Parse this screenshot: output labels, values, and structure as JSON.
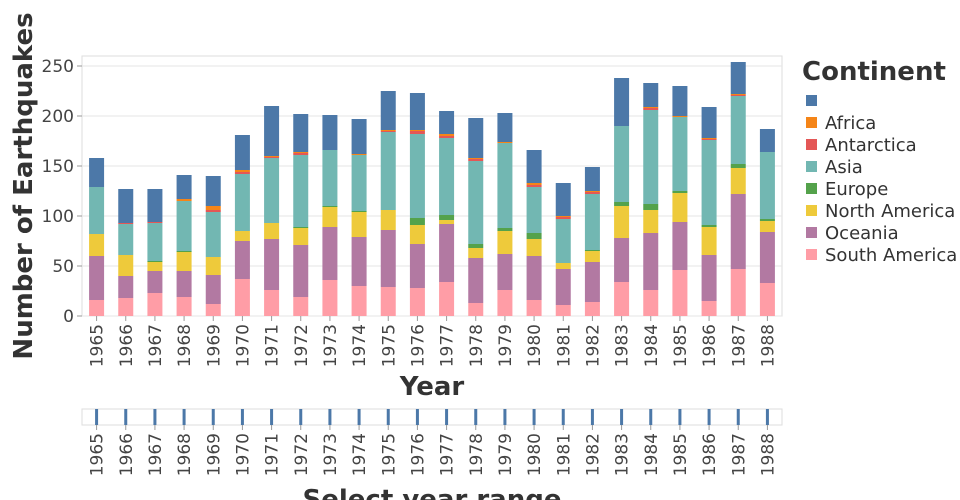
{
  "chart_data": {
    "type": "bar",
    "stacked": true,
    "title": "",
    "xlabel": "Year",
    "ylabel": "Number of Earthquakes",
    "ylim": [
      0,
      260
    ],
    "yticks": [
      0,
      50,
      100,
      150,
      200,
      250
    ],
    "grid": true,
    "legend_title": "Continent",
    "legend_position": "right",
    "categories": [
      "1965",
      "1966",
      "1967",
      "1968",
      "1969",
      "1970",
      "1971",
      "1972",
      "1973",
      "1974",
      "1975",
      "1976",
      "1977",
      "1978",
      "1979",
      "1980",
      "1981",
      "1982",
      "1983",
      "1984",
      "1985",
      "1986",
      "1987",
      "1988"
    ],
    "series": [
      {
        "name": "South America",
        "color": "#FF9DA6",
        "values": [
          16,
          18,
          23,
          19,
          12,
          37,
          26,
          19,
          36,
          30,
          29,
          28,
          34,
          13,
          26,
          16,
          11,
          14,
          34,
          26,
          46,
          15,
          47,
          33
        ]
      },
      {
        "name": "Oceania",
        "color": "#B279A2",
        "values": [
          44,
          22,
          22,
          26,
          29,
          38,
          51,
          52,
          53,
          49,
          57,
          44,
          58,
          45,
          36,
          44,
          36,
          40,
          44,
          57,
          48,
          46,
          75,
          51
        ]
      },
      {
        "name": "North America",
        "color": "#EECA3B",
        "values": [
          22,
          21,
          9,
          19,
          18,
          10,
          16,
          17,
          20,
          25,
          20,
          19,
          4,
          10,
          23,
          17,
          6,
          11,
          32,
          23,
          29,
          28,
          26,
          11
        ]
      },
      {
        "name": "Europe",
        "color": "#54A24B",
        "values": [
          0,
          0,
          1,
          1,
          0,
          0,
          0,
          1,
          1,
          1,
          0,
          7,
          5,
          4,
          3,
          6,
          0,
          1,
          4,
          6,
          2,
          2,
          4,
          2
        ]
      },
      {
        "name": "Asia",
        "color": "#72B7B2",
        "values": [
          47,
          31,
          38,
          50,
          45,
          57,
          65,
          72,
          56,
          56,
          78,
          84,
          77,
          83,
          85,
          46,
          44,
          56,
          76,
          94,
          74,
          85,
          68,
          67
        ]
      },
      {
        "name": "Antarctica",
        "color": "#E45756",
        "values": [
          0,
          1,
          1,
          0,
          2,
          2,
          1,
          2,
          0,
          0,
          1,
          3,
          2,
          2,
          0,
          2,
          2,
          2,
          0,
          2,
          0,
          1,
          1,
          0
        ]
      },
      {
        "name": "Africa",
        "color": "#F58518",
        "values": [
          0,
          0,
          0,
          2,
          4,
          2,
          1,
          1,
          0,
          1,
          1,
          1,
          2,
          1,
          1,
          2,
          1,
          1,
          0,
          1,
          1,
          1,
          1,
          0
        ]
      },
      {
        "name": "",
        "color": "#4C78A8",
        "values": [
          29,
          34,
          33,
          24,
          30,
          35,
          50,
          38,
          35,
          35,
          39,
          37,
          23,
          40,
          29,
          33,
          33,
          24,
          48,
          24,
          30,
          31,
          32,
          23
        ]
      }
    ],
    "legend_order": [
      "",
      "Africa",
      "Antarctica",
      "Asia",
      "Europe",
      "North America",
      "Oceania",
      "South America"
    ]
  },
  "brush": {
    "xlabel": "Select year range"
  }
}
